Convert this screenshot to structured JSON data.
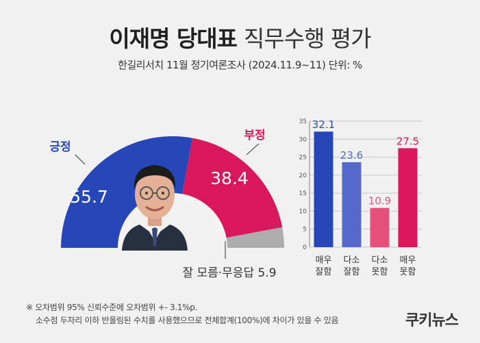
{
  "header": {
    "title_bold": "이재명 당대표",
    "title_light": "직무수행 평가",
    "subtitle": "한길리서치 11월 정기여론조사 (2024.11.9~11) 단위: %"
  },
  "chart_data": [
    {
      "type": "pie",
      "variant": "semi-donut",
      "slices": [
        {
          "label": "긍정",
          "value": 55.7,
          "color": "#2746b7"
        },
        {
          "label": "부정",
          "value": 38.4,
          "color": "#d8185a"
        },
        {
          "label": "잘 모름·무응답",
          "value": 5.9,
          "color": "#adadae"
        }
      ]
    },
    {
      "type": "bar",
      "categories": [
        "매우 잘함",
        "다소 잘함",
        "다소 못함",
        "매우 못함"
      ],
      "values": [
        32.1,
        23.6,
        10.9,
        27.5
      ],
      "colors": [
        "#2746b7",
        "#5469c9",
        "#e8507c",
        "#d8185a"
      ],
      "ylim": [
        0,
        35
      ],
      "yticks": [
        0,
        5,
        10,
        15,
        20,
        25,
        30,
        35
      ]
    }
  ],
  "notes": [
    "※ 오차범위 95% 신뢰수준에 오차범위 +- 3.1%p.",
    "소수점 두자리 이하 반올림된 수치를 사용했으므로 전체합계(100%)에 차이가 있을 수 있음"
  ],
  "logo": "쿠키뉴스"
}
